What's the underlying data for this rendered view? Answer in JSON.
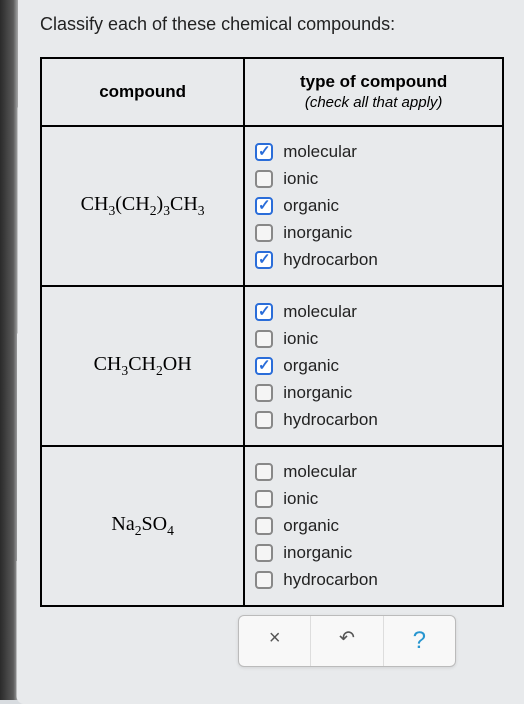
{
  "question": "Classify each of these chemical compounds:",
  "headers": {
    "compound": "compound",
    "type": "type of compound",
    "type_sub": "(check all that apply)"
  },
  "compounds": {
    "c0": {
      "formula_html": "CH<sub>3</sub>(CH<sub>2</sub>)<sub>3</sub>CH<sub>3</sub>"
    },
    "c1": {
      "formula_html": "CH<sub>3</sub>CH<sub>2</sub>OH"
    },
    "c2": {
      "formula_html": "Na<sub>2</sub>SO<sub>4</sub>"
    }
  },
  "option_labels": {
    "molecular": "molecular",
    "ionic": "ionic",
    "organic": "organic",
    "inorganic": "inorganic",
    "hydrocarbon": "hydrocarbon"
  },
  "checked_state": {
    "c0": {
      "molecular": true,
      "ionic": false,
      "organic": true,
      "inorganic": false,
      "hydrocarbon": true
    },
    "c1": {
      "molecular": true,
      "ionic": false,
      "organic": true,
      "inorganic": false,
      "hydrocarbon": false
    },
    "c2": {
      "molecular": false,
      "ionic": false,
      "organic": false,
      "inorganic": false,
      "hydrocarbon": false
    }
  },
  "actions": {
    "clear": "×",
    "reset": "↶",
    "help": "?"
  },
  "colors": {
    "check_color": "#2a6dd9",
    "help_color": "#2896d0",
    "border": "#000000",
    "page_bg": "#e8eaec"
  }
}
